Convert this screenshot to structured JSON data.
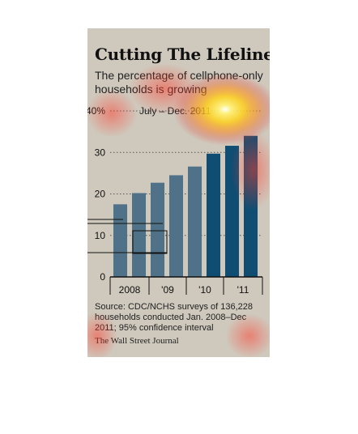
{
  "chart_data": {
    "type": "bar",
    "title": "Cutting The Lifeline",
    "subtitle": "The percentage of cellphone-only households is growing",
    "range_label": "July – Dec. 2011",
    "y_tick_labels": [
      "40%",
      "30",
      "20",
      "10",
      "0"
    ],
    "ylim": [
      0,
      40
    ],
    "grid": "dotted horizontal",
    "x_tick_labels": [
      "2008",
      "'09",
      "'10",
      "'11"
    ],
    "values": [
      17.5,
      20.2,
      22.7,
      24.5,
      26.6,
      29.7,
      31.6,
      34.0
    ],
    "source": "Source: CDC/NCHS surveys of 136,228 households conducted Jan. 2008–Dec 2011; 95% confidence interval",
    "publisher": "The Wall Street Journal",
    "colors": {
      "bar_light": "#4f7288",
      "bar_dark": "#0f4d73",
      "background": "#cfc9bd"
    }
  }
}
